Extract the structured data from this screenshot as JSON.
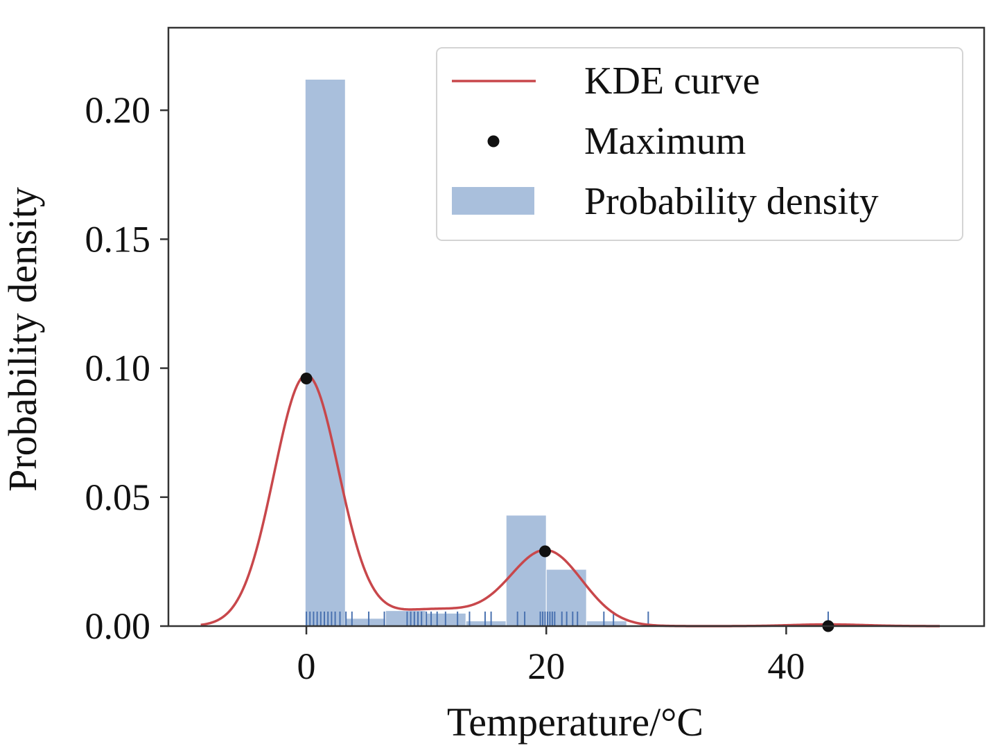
{
  "chart_data": {
    "type": "histogram+kde",
    "xlabel": "Temperature/°C",
    "ylabel": "Probability density",
    "xlim": [
      -11.5,
      56.5
    ],
    "ylim": [
      0,
      0.232
    ],
    "x_ticks": [
      0,
      20,
      40
    ],
    "y_ticks": [
      0.0,
      0.05,
      0.1,
      0.15,
      0.2
    ],
    "y_tick_labels": [
      "0.00",
      "0.05",
      "0.10",
      "0.15",
      "0.20"
    ],
    "grid": false,
    "legend_position": "top-right",
    "legend": [
      {
        "label": "KDE curve",
        "kind": "line"
      },
      {
        "label": "Maximum",
        "kind": "marker"
      },
      {
        "label": "Probability density",
        "kind": "patch"
      }
    ],
    "histogram": {
      "name": "Probability density",
      "bins": [
        {
          "start": -0.1,
          "end": 3.25,
          "density": 0.212
        },
        {
          "start": 3.25,
          "end": 6.6,
          "density": 0.003
        },
        {
          "start": 6.6,
          "end": 9.95,
          "density": 0.006
        },
        {
          "start": 9.95,
          "end": 13.3,
          "density": 0.005
        },
        {
          "start": 13.3,
          "end": 16.65,
          "density": 0.002
        },
        {
          "start": 16.65,
          "end": 20.0,
          "density": 0.043
        },
        {
          "start": 20.0,
          "end": 23.35,
          "density": 0.022
        },
        {
          "start": 23.35,
          "end": 26.7,
          "density": 0.002
        }
      ],
      "color": "#a9bfdc"
    },
    "kde": {
      "name": "KDE curve",
      "color": "#c8474b",
      "components": [
        {
          "mean": 0.0,
          "sd": 2.7,
          "weight": 0.657
        },
        {
          "mean": 20.0,
          "sd": 3.0,
          "weight": 0.218
        },
        {
          "mean": 10.5,
          "sd": 4.2,
          "weight": 0.068
        },
        {
          "mean": 43.5,
          "sd": 3.0,
          "weight": 0.005
        }
      ],
      "x_range": [
        -8.8,
        52.8
      ]
    },
    "maxima": {
      "name": "Maximum",
      "x": [
        0.0,
        19.9,
        43.5
      ],
      "y": [
        0.096,
        0.029,
        0.0
      ]
    },
    "rug": {
      "color": "#4a72b0",
      "x": [
        0.0,
        0.3,
        0.6,
        0.9,
        1.2,
        1.5,
        1.8,
        2.1,
        2.4,
        2.8,
        3.3,
        3.8,
        5.2,
        6.5,
        8.4,
        8.7,
        9.0,
        9.3,
        9.6,
        10.0,
        10.4,
        10.9,
        11.6,
        12.6,
        13.6,
        14.9,
        15.4,
        17.6,
        18.2,
        19.5,
        19.7,
        19.9,
        20.1,
        20.3,
        20.5,
        20.7,
        21.3,
        21.7,
        22.2,
        22.6,
        24.8,
        25.6,
        28.5,
        43.5
      ]
    }
  }
}
